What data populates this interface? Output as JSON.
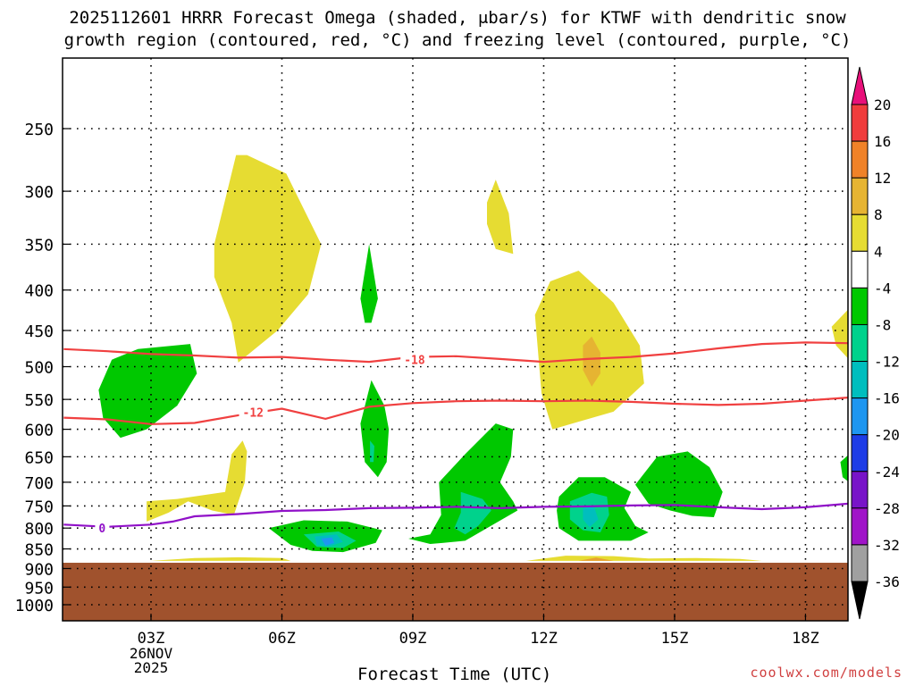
{
  "title_line1": "2025112601 HRRR Forecast Omega (shaded, μbar/s) for KTWF with dendritic snow",
  "title_line2": "growth region (contoured, red, °C) and freezing level (contoured, purple, °C)",
  "credit": "coolwx.com/models",
  "chart_data": {
    "type": "heatmap",
    "xlabel": "Forecast Time (UTC)",
    "x_ticks": [
      {
        "x": 3,
        "label": "03Z",
        "sub1": "26NOV",
        "sub2": "2025"
      },
      {
        "x": 6,
        "label": "06Z",
        "sub1": "",
        "sub2": ""
      },
      {
        "x": 9,
        "label": "09Z",
        "sub1": "",
        "sub2": ""
      },
      {
        "x": 12,
        "label": "12Z",
        "sub1": "",
        "sub2": ""
      },
      {
        "x": 15,
        "label": "15Z",
        "sub1": "",
        "sub2": ""
      },
      {
        "x": 18,
        "label": "18Z",
        "sub1": "",
        "sub2": ""
      }
    ],
    "xlim": [
      1,
      19
    ],
    "y_ticks": [
      250,
      300,
      350,
      400,
      450,
      500,
      550,
      600,
      650,
      700,
      750,
      800,
      850,
      900,
      950,
      1000
    ],
    "ylim": [
      200,
      1050
    ],
    "ground_pressure_hpa": 885,
    "ground_color": "#a0522d",
    "colorbar": {
      "levels": [
        "20",
        "16",
        "12",
        "8",
        "4",
        "-4",
        "-8",
        "-12",
        "-16",
        "-20",
        "-24",
        "-28",
        "-32",
        "-36"
      ],
      "colors": [
        "#e8107a",
        "#f03c3c",
        "#f08228",
        "#e6b432",
        "#e6dc32",
        "#ffffff",
        "#00c800",
        "#00d28c",
        "#00bebe",
        "#1e96f0",
        "#1e3ce6",
        "#7814c8",
        "#a014c8",
        "#a0a0a0",
        "#000000"
      ]
    },
    "contours": [
      {
        "name": "-18",
        "color": "#f04040",
        "label": "-18",
        "label_at": [
          8.8,
          490
        ],
        "points": [
          [
            1,
            475
          ],
          [
            2,
            478
          ],
          [
            3,
            482
          ],
          [
            4,
            484
          ],
          [
            5,
            487
          ],
          [
            6,
            486
          ],
          [
            7,
            490
          ],
          [
            8,
            493
          ],
          [
            9,
            486
          ],
          [
            10,
            485
          ],
          [
            11,
            489
          ],
          [
            12,
            493
          ],
          [
            13,
            489
          ],
          [
            14,
            486
          ],
          [
            15,
            481
          ],
          [
            16,
            474
          ],
          [
            17,
            468
          ],
          [
            18,
            466
          ],
          [
            19,
            467
          ]
        ]
      },
      {
        "name": "-12",
        "color": "#f04040",
        "label": "-12",
        "label_at": [
          5.1,
          571
        ],
        "points": [
          [
            1,
            580
          ],
          [
            2,
            583
          ],
          [
            3,
            591
          ],
          [
            4,
            589
          ],
          [
            5,
            576
          ],
          [
            6,
            565
          ],
          [
            7,
            582
          ],
          [
            8,
            562
          ],
          [
            9,
            556
          ],
          [
            10,
            553
          ],
          [
            11,
            552
          ],
          [
            12,
            553
          ],
          [
            13,
            552
          ],
          [
            14,
            554
          ],
          [
            15,
            557
          ],
          [
            16,
            559
          ],
          [
            17,
            557
          ],
          [
            18,
            552
          ],
          [
            19,
            547
          ]
        ]
      },
      {
        "name": "freezing-level",
        "color": "#9010c8",
        "label": "0",
        "label_at": [
          1.8,
          800
        ],
        "points": [
          [
            1,
            792
          ],
          [
            2,
            797
          ],
          [
            3,
            792
          ],
          [
            3.5,
            785
          ],
          [
            4,
            773
          ],
          [
            5,
            768
          ],
          [
            6,
            761
          ],
          [
            7,
            759
          ],
          [
            8,
            755
          ],
          [
            9,
            754
          ],
          [
            10,
            752
          ],
          [
            11,
            755
          ],
          [
            12,
            752
          ],
          [
            13,
            751
          ],
          [
            14,
            749
          ],
          [
            15,
            748
          ],
          [
            16,
            753
          ],
          [
            17,
            757
          ],
          [
            18,
            753
          ],
          [
            19,
            745
          ]
        ]
      }
    ],
    "shaded_regions": [
      {
        "value": 4,
        "color": "#e6dc32",
        "points": [
          [
            4.45,
            350
          ],
          [
            4.95,
            270
          ],
          [
            5.2,
            270
          ],
          [
            6.1,
            285
          ],
          [
            6.9,
            350
          ],
          [
            6.6,
            405
          ],
          [
            5.9,
            450
          ],
          [
            5,
            494
          ],
          [
            4.85,
            440
          ],
          [
            4.45,
            385
          ]
        ]
      },
      {
        "value": 4,
        "color": "#e6dc32",
        "points": [
          [
            10.7,
            310
          ],
          [
            10.9,
            290
          ],
          [
            11.2,
            320
          ],
          [
            11.3,
            360
          ],
          [
            10.9,
            355
          ],
          [
            10.7,
            330
          ]
        ]
      },
      {
        "value": 4,
        "color": "#e6dc32",
        "points": [
          [
            12.15,
            390
          ],
          [
            12.8,
            378
          ],
          [
            13.6,
            415
          ],
          [
            14.2,
            470
          ],
          [
            14.3,
            525
          ],
          [
            13.6,
            570
          ],
          [
            12.2,
            600
          ],
          [
            11.95,
            540
          ],
          [
            11.8,
            430
          ]
        ]
      },
      {
        "value": 4,
        "color": "#e6dc32",
        "points": [
          [
            19,
            422
          ],
          [
            18.6,
            445
          ],
          [
            18.7,
            470
          ],
          [
            19,
            490
          ]
        ]
      },
      {
        "value": 4,
        "color": "#e6dc32",
        "points": [
          [
            4.85,
            645
          ],
          [
            5.1,
            620
          ],
          [
            5.2,
            640
          ],
          [
            5.15,
            700
          ],
          [
            4.9,
            770
          ],
          [
            4.4,
            760
          ],
          [
            3.85,
            740
          ],
          [
            3.4,
            765
          ],
          [
            2.9,
            785
          ],
          [
            2.9,
            740
          ],
          [
            3.6,
            735
          ],
          [
            4.7,
            720
          ]
        ]
      },
      {
        "value": 4,
        "color": "#e6dc32",
        "points": [
          [
            3,
            880
          ],
          [
            4,
            873
          ],
          [
            5,
            871
          ],
          [
            6,
            873
          ],
          [
            6.2,
            880
          ]
        ]
      },
      {
        "value": 4,
        "color": "#e6dc32",
        "points": [
          [
            11.6,
            880
          ],
          [
            12.5,
            867
          ],
          [
            13.6,
            868
          ],
          [
            14.4,
            874
          ],
          [
            15.5,
            873
          ],
          [
            16.5,
            875
          ],
          [
            17,
            880
          ]
        ]
      },
      {
        "value": 8,
        "color": "#e6b432",
        "points": [
          [
            12.9,
            470
          ],
          [
            13.1,
            458
          ],
          [
            13.3,
            480
          ],
          [
            13.3,
            510
          ],
          [
            13.1,
            530
          ],
          [
            12.9,
            505
          ]
        ]
      },
      {
        "value": 8,
        "color": "#e8a030",
        "points": [
          [
            12.8,
            880
          ],
          [
            13.2,
            872
          ],
          [
            13.6,
            880
          ]
        ]
      },
      {
        "value": -4,
        "color": "#00c800",
        "points": [
          [
            1.8,
            535
          ],
          [
            2.1,
            490
          ],
          [
            2.7,
            475
          ],
          [
            3.9,
            468
          ],
          [
            4.05,
            510
          ],
          [
            3.6,
            560
          ],
          [
            2.9,
            600
          ],
          [
            2.3,
            615
          ],
          [
            1.9,
            580
          ]
        ]
      },
      {
        "value": -4,
        "color": "#00c800",
        "points": [
          [
            7.8,
            410
          ],
          [
            8,
            350
          ],
          [
            8.2,
            410
          ],
          [
            8.05,
            440
          ],
          [
            7.9,
            440
          ]
        ]
      },
      {
        "value": -4,
        "color": "#00c800",
        "points": [
          [
            7.8,
            590
          ],
          [
            8.05,
            520
          ],
          [
            8.35,
            560
          ],
          [
            8.45,
            600
          ],
          [
            8.4,
            660
          ],
          [
            8.2,
            690
          ],
          [
            7.9,
            660
          ]
        ]
      },
      {
        "value": -4,
        "color": "#00c800",
        "points": [
          [
            9.6,
            700
          ],
          [
            10.2,
            645
          ],
          [
            10.9,
            590
          ],
          [
            11.3,
            600
          ],
          [
            11.25,
            650
          ],
          [
            11.0,
            700
          ],
          [
            11.3,
            740
          ],
          [
            11.4,
            760
          ],
          [
            10.7,
            800
          ],
          [
            10.2,
            830
          ],
          [
            9.7,
            835
          ],
          [
            9.4,
            838
          ],
          [
            8.9,
            825
          ],
          [
            9.4,
            815
          ],
          [
            9.65,
            770
          ]
        ]
      },
      {
        "value": -4,
        "color": "#00c800",
        "points": [
          [
            5.7,
            800
          ],
          [
            6.5,
            782
          ],
          [
            7.5,
            785
          ],
          [
            8.3,
            805
          ],
          [
            8.15,
            835
          ],
          [
            7.4,
            858
          ],
          [
            6.7,
            855
          ],
          [
            6.2,
            840
          ]
        ]
      },
      {
        "value": -4,
        "color": "#00c800",
        "points": [
          [
            12.35,
            730
          ],
          [
            12.8,
            690
          ],
          [
            13.4,
            690
          ],
          [
            14,
            720
          ],
          [
            13.85,
            755
          ],
          [
            14.1,
            795
          ],
          [
            14.4,
            810
          ],
          [
            14.0,
            830
          ],
          [
            12.8,
            830
          ],
          [
            12.35,
            800
          ],
          [
            12.3,
            760
          ]
        ]
      },
      {
        "value": -4,
        "color": "#00c800",
        "points": [
          [
            14.1,
            705
          ],
          [
            14.6,
            650
          ],
          [
            15.3,
            640
          ],
          [
            15.8,
            670
          ],
          [
            16.1,
            720
          ],
          [
            15.9,
            775
          ],
          [
            15.4,
            772
          ],
          [
            14.9,
            760
          ],
          [
            14.4,
            745
          ]
        ]
      },
      {
        "value": -4,
        "color": "#00c800",
        "points": [
          [
            19,
            645
          ],
          [
            18.8,
            660
          ],
          [
            18.85,
            690
          ],
          [
            19,
            700
          ]
        ]
      },
      {
        "value": -8,
        "color": "#00d28c",
        "points": [
          [
            10.1,
            720
          ],
          [
            10.6,
            735
          ],
          [
            10.8,
            760
          ],
          [
            10.5,
            795
          ],
          [
            10.2,
            815
          ],
          [
            9.95,
            800
          ],
          [
            10.1,
            765
          ]
        ]
      },
      {
        "value": -8,
        "color": "#00d28c",
        "points": [
          [
            12.6,
            740
          ],
          [
            13.1,
            722
          ],
          [
            13.45,
            730
          ],
          [
            13.5,
            770
          ],
          [
            13.3,
            810
          ],
          [
            12.9,
            805
          ],
          [
            12.6,
            780
          ]
        ]
      },
      {
        "value": -8,
        "color": "#00d28c",
        "points": [
          [
            6.5,
            815
          ],
          [
            7.3,
            808
          ],
          [
            7.7,
            830
          ],
          [
            7.4,
            848
          ],
          [
            6.8,
            845
          ]
        ]
      },
      {
        "value": -8,
        "color": "#00d28c",
        "points": [
          [
            8.02,
            620
          ],
          [
            8.12,
            630
          ],
          [
            8.1,
            660
          ],
          [
            8.02,
            660
          ]
        ]
      },
      {
        "value": -12,
        "color": "#00bebe",
        "points": [
          [
            6.75,
            820
          ],
          [
            7.25,
            815
          ],
          [
            7.4,
            833
          ],
          [
            7.05,
            845
          ],
          [
            6.8,
            840
          ]
        ]
      },
      {
        "value": -12,
        "color": "#00bebe",
        "points": [
          [
            12.9,
            755
          ],
          [
            13.15,
            750
          ],
          [
            13.25,
            780
          ],
          [
            13.05,
            798
          ],
          [
            12.9,
            780
          ]
        ]
      },
      {
        "value": -16,
        "color": "#1e96f0",
        "points": [
          [
            6.9,
            825
          ],
          [
            7.15,
            822
          ],
          [
            7.2,
            835
          ],
          [
            7.0,
            842
          ]
        ]
      }
    ]
  }
}
